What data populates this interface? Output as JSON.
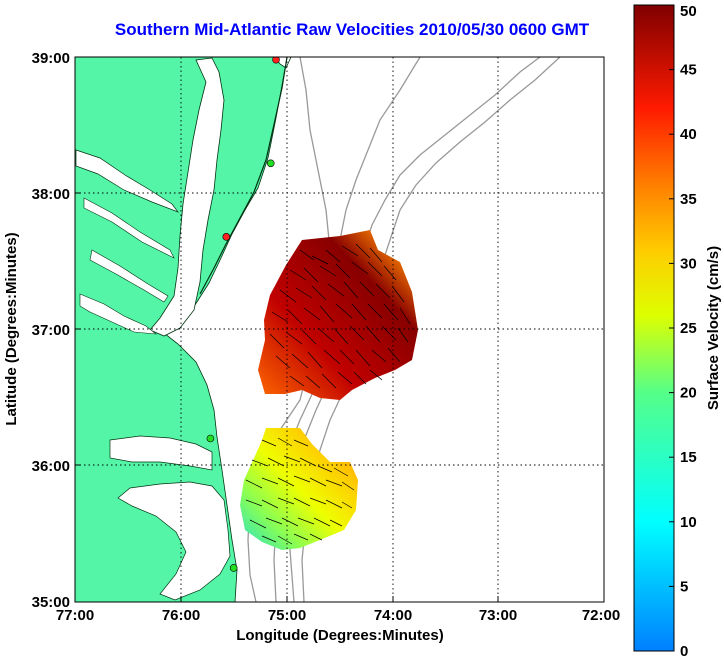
{
  "title": "Southern Mid-Atlantic Raw Velocities 2010/05/30 0600 GMT",
  "xlabel": "Longitude (Degrees:Minutes)",
  "ylabel": "Latitude (Degrees:Minutes)",
  "x_ticks": [
    "77:00",
    "76:00",
    "75:00",
    "74:00",
    "73:00",
    "72:00"
  ],
  "y_ticks": [
    "39:00",
    "38:00",
    "37:00",
    "36:00",
    "35:00"
  ],
  "colorbar": {
    "label": "Surface Velocity (cm/s)",
    "min": 0,
    "max": 50,
    "ticks": [
      "0",
      "5",
      "10",
      "15",
      "20",
      "25",
      "30",
      "35",
      "40",
      "45",
      "50"
    ]
  },
  "colors": {
    "land": "#55f5a8",
    "water": "#ffffff",
    "title": "#0000ff",
    "grid": "#000000",
    "isobath": "#999999",
    "station_red": "#ff2020",
    "station_green": "#22dd22"
  },
  "chart_data": {
    "type": "map",
    "xlim": [
      -77,
      -72
    ],
    "ylim": [
      35,
      39
    ],
    "grid": true,
    "stations": [
      {
        "lon": -75.1,
        "lat": 38.98,
        "status": "red"
      },
      {
        "lon": -75.15,
        "lat": 38.22,
        "status": "green"
      },
      {
        "lon": -75.57,
        "lat": 37.68,
        "status": "red"
      },
      {
        "lon": -75.72,
        "lat": 36.2,
        "status": "green"
      },
      {
        "lon": -75.5,
        "lat": 35.25,
        "status": "green"
      }
    ]
  }
}
